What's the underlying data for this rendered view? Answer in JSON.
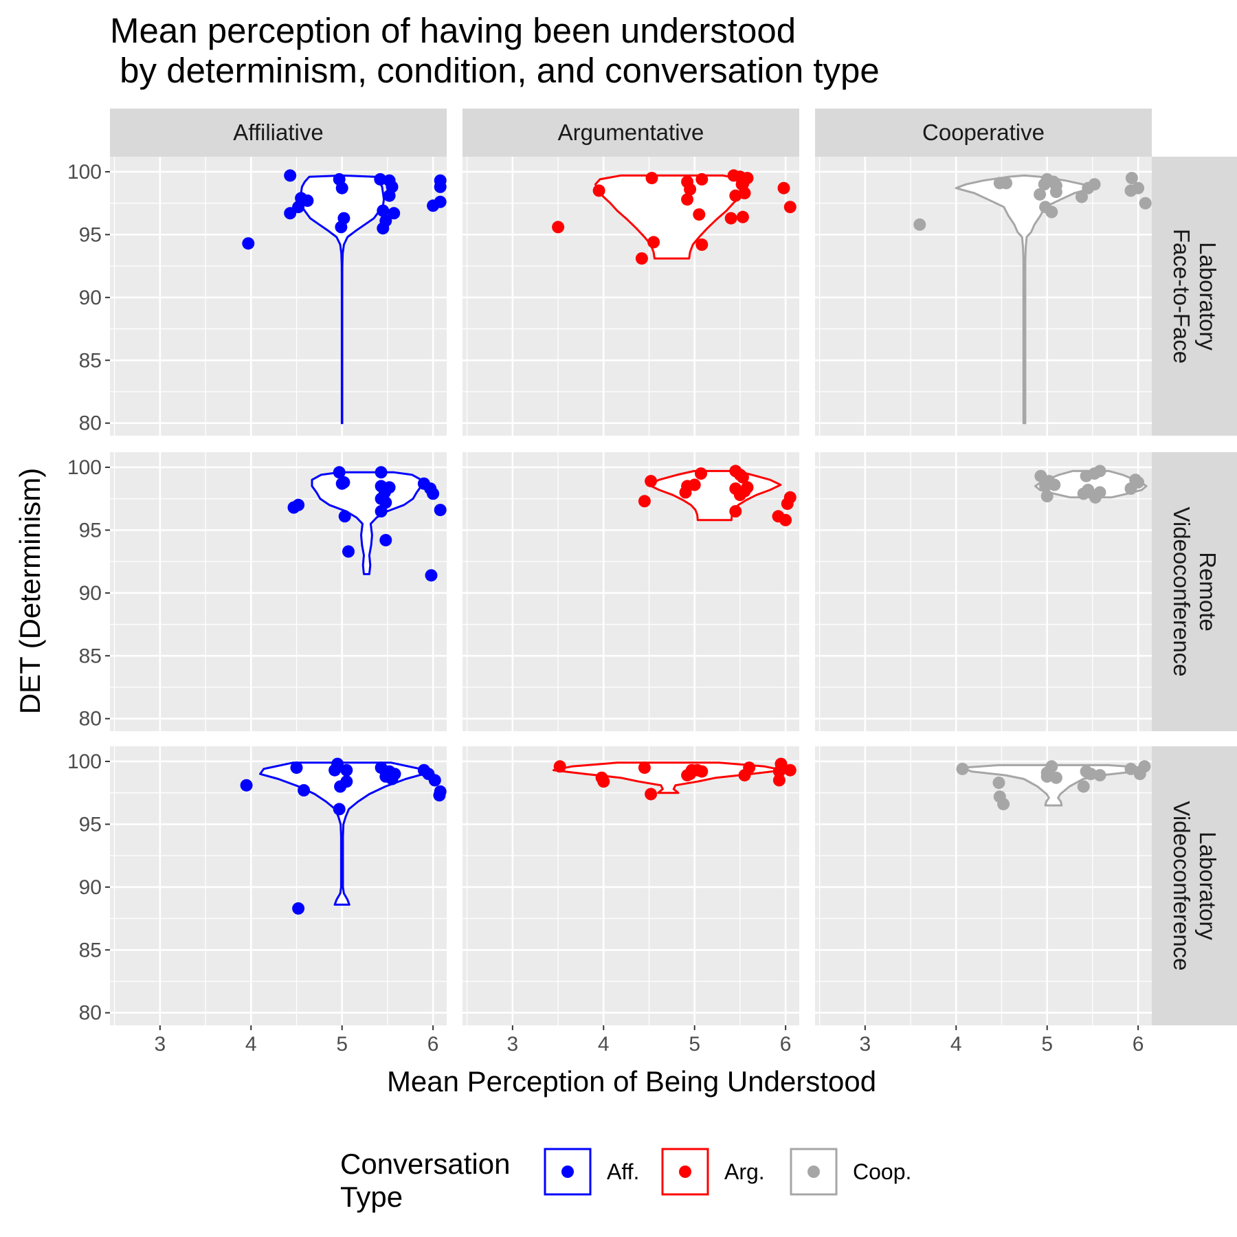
{
  "chart_data": {
    "type": "scatter",
    "title_lines": [
      "Mean perception of having been understood",
      " by determinism, condition, and conversation type"
    ],
    "xlabel": "Mean Perception of Being Understood",
    "ylabel": "DET (Determinism)",
    "xlim": [
      2.45,
      6.15
    ],
    "ylim": [
      79,
      101.2
    ],
    "x_ticks": [
      3,
      4,
      5,
      6
    ],
    "y_ticks": [
      80,
      85,
      90,
      95,
      100
    ],
    "grid": true,
    "legend_position": "bottom",
    "legend": {
      "title_lines": [
        "Conversation",
        "Type"
      ],
      "entries": [
        {
          "label": "Aff.",
          "color": "#0000ff"
        },
        {
          "label": "Arg.",
          "color": "#ff0000"
        },
        {
          "label": "Coop.",
          "color": "#a6a6a6"
        }
      ]
    },
    "columns": [
      "Affiliative",
      "Argumentative",
      "Cooperative"
    ],
    "rows": [
      {
        "lines": [
          "Laboratory",
          "Face-to-Face"
        ]
      },
      {
        "lines": [
          "Remote",
          "Videoconference"
        ]
      },
      {
        "lines": [
          "Laboratory",
          "Videoconference"
        ]
      }
    ],
    "panels": [
      {
        "row": 0,
        "col": 0,
        "color": "#0000ff",
        "points": [
          [
            4.43,
            99.7
          ],
          [
            4.97,
            99.4
          ],
          [
            5.42,
            99.4
          ],
          [
            5.52,
            99.3
          ],
          [
            6.08,
            99.3
          ],
          [
            5.0,
            98.7
          ],
          [
            5.55,
            98.8
          ],
          [
            6.08,
            98.8
          ],
          [
            4.55,
            97.9
          ],
          [
            4.62,
            97.7
          ],
          [
            5.52,
            98.1
          ],
          [
            4.52,
            97.2
          ],
          [
            4.43,
            96.7
          ],
          [
            5.45,
            96.9
          ],
          [
            5.57,
            96.7
          ],
          [
            6.0,
            97.3
          ],
          [
            6.08,
            97.6
          ],
          [
            5.02,
            96.3
          ],
          [
            5.48,
            96.1
          ],
          [
            4.99,
            95.6
          ],
          [
            5.45,
            95.5
          ],
          [
            3.97,
            94.3
          ]
        ],
        "violin": {
          "center": 5.0,
          "y": [
            80,
            85,
            90,
            92.5,
            93.5,
            94.2,
            94.8,
            95.3,
            95.8,
            96.3,
            96.8,
            97.3,
            97.8,
            98.3,
            98.8,
            99.2,
            99.6,
            99.7
          ],
          "w": [
            0.005,
            0.005,
            0.005,
            0.006,
            0.015,
            0.04,
            0.12,
            0.3,
            0.5,
            0.7,
            0.8,
            0.9,
            0.92,
            0.9,
            0.88,
            0.82,
            0.72,
            0.0
          ]
        }
      },
      {
        "row": 0,
        "col": 1,
        "color": "#ff0000",
        "points": [
          [
            4.53,
            99.5
          ],
          [
            4.92,
            99.2
          ],
          [
            5.08,
            99.4
          ],
          [
            5.43,
            99.7
          ],
          [
            5.5,
            99.6
          ],
          [
            5.58,
            99.5
          ],
          [
            5.52,
            99.0
          ],
          [
            4.95,
            98.6
          ],
          [
            3.95,
            98.5
          ],
          [
            5.45,
            98.1
          ],
          [
            5.55,
            98.3
          ],
          [
            5.98,
            98.7
          ],
          [
            4.92,
            97.8
          ],
          [
            6.05,
            97.2
          ],
          [
            5.05,
            96.6
          ],
          [
            5.4,
            96.3
          ],
          [
            5.53,
            96.4
          ],
          [
            3.5,
            95.6
          ],
          [
            4.55,
            94.4
          ],
          [
            5.08,
            94.2
          ],
          [
            4.42,
            93.1
          ]
        ],
        "violin": {
          "center": 4.75,
          "y": [
            93.1,
            93.6,
            94.2,
            94.8,
            95.5,
            96.2,
            96.9,
            97.5,
            98.0,
            98.5,
            99.0,
            99.4,
            99.7
          ],
          "w": [
            0.38,
            0.4,
            0.46,
            0.6,
            0.78,
            0.98,
            1.2,
            1.35,
            1.5,
            1.62,
            1.68,
            1.58,
            1.12
          ]
        }
      },
      {
        "row": 0,
        "col": 2,
        "color": "#a6a6a6",
        "points": [
          [
            4.48,
            99.1
          ],
          [
            4.55,
            99.1
          ],
          [
            4.97,
            99.0
          ],
          [
            5.0,
            99.4
          ],
          [
            5.07,
            99.2
          ],
          [
            5.1,
            98.9
          ],
          [
            5.45,
            98.7
          ],
          [
            5.52,
            99.0
          ],
          [
            5.93,
            99.5
          ],
          [
            4.92,
            98.2
          ],
          [
            5.1,
            98.4
          ],
          [
            5.38,
            98.0
          ],
          [
            5.92,
            98.5
          ],
          [
            6.0,
            98.7
          ],
          [
            4.98,
            97.2
          ],
          [
            5.05,
            96.8
          ],
          [
            6.08,
            97.5
          ],
          [
            3.6,
            95.8
          ]
        ],
        "violin": {
          "center": 4.75,
          "y": [
            80,
            85,
            90,
            93,
            94,
            94.8,
            95.2,
            95.8,
            96.5,
            97.2,
            97.8,
            98.3,
            98.7,
            99.0,
            99.3,
            99.6,
            99.7
          ],
          "w": [
            0.02,
            0.02,
            0.02,
            0.02,
            0.03,
            0.05,
            0.15,
            0.22,
            0.35,
            0.45,
            0.8,
            1.1,
            1.5,
            1.28,
            0.9,
            0.35,
            0.0
          ]
        }
      },
      {
        "row": 1,
        "col": 0,
        "color": "#0000ff",
        "points": [
          [
            4.97,
            99.6
          ],
          [
            5.43,
            99.6
          ],
          [
            5.0,
            98.7
          ],
          [
            5.43,
            98.5
          ],
          [
            5.52,
            98.4
          ],
          [
            5.9,
            98.7
          ],
          [
            5.97,
            98.3
          ],
          [
            5.02,
            98.8
          ],
          [
            5.47,
            98.0
          ],
          [
            6.0,
            97.9
          ],
          [
            5.43,
            97.5
          ],
          [
            5.48,
            97.2
          ],
          [
            4.52,
            97.0
          ],
          [
            4.47,
            96.8
          ],
          [
            5.43,
            96.5
          ],
          [
            6.08,
            96.6
          ],
          [
            5.03,
            96.1
          ],
          [
            5.48,
            94.2
          ],
          [
            5.07,
            93.3
          ],
          [
            5.98,
            91.4
          ]
        ],
        "violin": {
          "center": 5.27,
          "y": [
            91.5,
            92.2,
            93.0,
            93.8,
            94.6,
            95.5,
            96.0,
            96.5,
            97.0,
            97.5,
            98.0,
            98.5,
            99.0,
            99.4,
            99.6
          ],
          "w": [
            0.06,
            0.08,
            0.06,
            0.1,
            0.12,
            0.09,
            0.22,
            0.45,
            0.82,
            1.02,
            1.1,
            1.2,
            1.2,
            1.0,
            0.6
          ]
        }
      },
      {
        "row": 1,
        "col": 1,
        "color": "#ff0000",
        "points": [
          [
            4.52,
            98.9
          ],
          [
            5.07,
            99.5
          ],
          [
            5.45,
            99.7
          ],
          [
            5.5,
            99.4
          ],
          [
            5.53,
            99.2
          ],
          [
            4.92,
            98.5
          ],
          [
            5.0,
            98.6
          ],
          [
            5.45,
            98.3
          ],
          [
            5.58,
            98.4
          ],
          [
            4.9,
            98.0
          ],
          [
            5.5,
            97.8
          ],
          [
            5.55,
            98.1
          ],
          [
            6.05,
            97.6
          ],
          [
            4.45,
            97.3
          ],
          [
            6.02,
            97.1
          ],
          [
            5.45,
            96.5
          ],
          [
            5.92,
            96.1
          ],
          [
            6.0,
            95.8
          ]
        ],
        "violin": {
          "center": 5.22,
          "y": [
            95.8,
            96.2,
            96.6,
            97.0,
            97.4,
            97.8,
            98.2,
            98.6,
            99.0,
            99.4,
            99.7
          ],
          "w": [
            0.37,
            0.38,
            0.42,
            0.52,
            0.7,
            0.92,
            1.22,
            1.45,
            1.22,
            0.82,
            0.45
          ]
        }
      },
      {
        "row": 1,
        "col": 2,
        "color": "#a6a6a6",
        "points": [
          [
            5.43,
            99.3
          ],
          [
            5.58,
            99.7
          ],
          [
            5.52,
            99.5
          ],
          [
            4.93,
            99.3
          ],
          [
            5.02,
            98.9
          ],
          [
            5.97,
            99.0
          ],
          [
            6.0,
            98.8
          ],
          [
            4.98,
            98.5
          ],
          [
            5.08,
            98.6
          ],
          [
            5.45,
            98.2
          ],
          [
            5.92,
            98.3
          ],
          [
            5.4,
            97.9
          ],
          [
            5.58,
            98.0
          ],
          [
            5.0,
            97.7
          ],
          [
            5.53,
            97.6
          ]
        ],
        "violin": {
          "center": 5.48,
          "y": [
            97.6,
            97.9,
            98.2,
            98.5,
            98.8,
            99.1,
            99.4,
            99.7
          ],
          "w": [
            0.45,
            0.8,
            1.12,
            1.22,
            1.1,
            0.9,
            0.7,
            0.4
          ]
        }
      },
      {
        "row": 2,
        "col": 0,
        "color": "#0000ff",
        "points": [
          [
            4.5,
            99.5
          ],
          [
            4.95,
            99.8
          ],
          [
            4.92,
            99.3
          ],
          [
            5.05,
            99.3
          ],
          [
            5.43,
            99.5
          ],
          [
            5.52,
            99.2
          ],
          [
            5.58,
            99.0
          ],
          [
            5.9,
            99.3
          ],
          [
            5.95,
            99.0
          ],
          [
            5.48,
            98.8
          ],
          [
            5.55,
            98.6
          ],
          [
            6.02,
            98.5
          ],
          [
            5.05,
            98.4
          ],
          [
            4.98,
            98.0
          ],
          [
            3.95,
            98.1
          ],
          [
            4.58,
            97.7
          ],
          [
            6.08,
            97.6
          ],
          [
            6.07,
            97.3
          ],
          [
            4.97,
            96.2
          ],
          [
            4.52,
            88.3
          ]
        ],
        "violin": {
          "center": 5.0,
          "y": [
            88.6,
            89.0,
            89.5,
            90,
            92,
            94,
            95,
            95.6,
            96.2,
            96.8,
            97.4,
            98.0,
            98.6,
            99.0,
            99.4,
            99.9
          ],
          "w": [
            0.16,
            0.12,
            0.04,
            0.02,
            0.02,
            0.02,
            0.03,
            0.08,
            0.15,
            0.35,
            0.6,
            0.95,
            1.4,
            1.8,
            1.72,
            1.08
          ]
        }
      },
      {
        "row": 2,
        "col": 1,
        "color": "#ff0000",
        "points": [
          [
            3.52,
            99.6
          ],
          [
            4.45,
            99.5
          ],
          [
            4.97,
            99.3
          ],
          [
            4.95,
            99.0
          ],
          [
            5.03,
            99.3
          ],
          [
            5.08,
            99.2
          ],
          [
            5.6,
            99.5
          ],
          [
            5.95,
            99.8
          ],
          [
            6.05,
            99.3
          ],
          [
            5.93,
            99.2
          ],
          [
            4.92,
            98.9
          ],
          [
            5.55,
            98.9
          ],
          [
            5.93,
            98.5
          ],
          [
            3.98,
            98.7
          ],
          [
            4.0,
            98.4
          ],
          [
            4.52,
            97.4
          ]
        ],
        "violin": {
          "center": 4.71,
          "y": [
            97.5,
            97.8,
            98.1,
            98.4,
            98.7,
            99.0,
            99.3,
            99.6,
            99.9
          ],
          "w": [
            0.22,
            0.12,
            0.16,
            0.65,
            1.05,
            1.82,
            2.52,
            2.12,
            1.12
          ]
        }
      },
      {
        "row": 2,
        "col": 2,
        "color": "#a6a6a6",
        "points": [
          [
            4.07,
            99.4
          ],
          [
            5.05,
            99.6
          ],
          [
            5.0,
            99.1
          ],
          [
            5.92,
            99.4
          ],
          [
            6.07,
            99.6
          ],
          [
            5.43,
            99.2
          ],
          [
            5.48,
            99.0
          ],
          [
            5.58,
            98.9
          ],
          [
            6.02,
            99.0
          ],
          [
            5.0,
            98.8
          ],
          [
            5.1,
            98.7
          ],
          [
            4.47,
            98.3
          ],
          [
            5.4,
            98.0
          ],
          [
            4.48,
            97.2
          ],
          [
            4.52,
            96.6
          ]
        ],
        "violin": {
          "center": 5.07,
          "y": [
            96.5,
            96.8,
            97.1,
            97.4,
            97.7,
            98.0,
            98.3,
            98.6,
            98.9,
            99.2,
            99.5,
            99.7
          ],
          "w": [
            0.18,
            0.16,
            0.1,
            0.15,
            0.25,
            0.35,
            0.5,
            0.65,
            1.05,
            1.8,
            2.0,
            1.2
          ]
        }
      }
    ]
  }
}
